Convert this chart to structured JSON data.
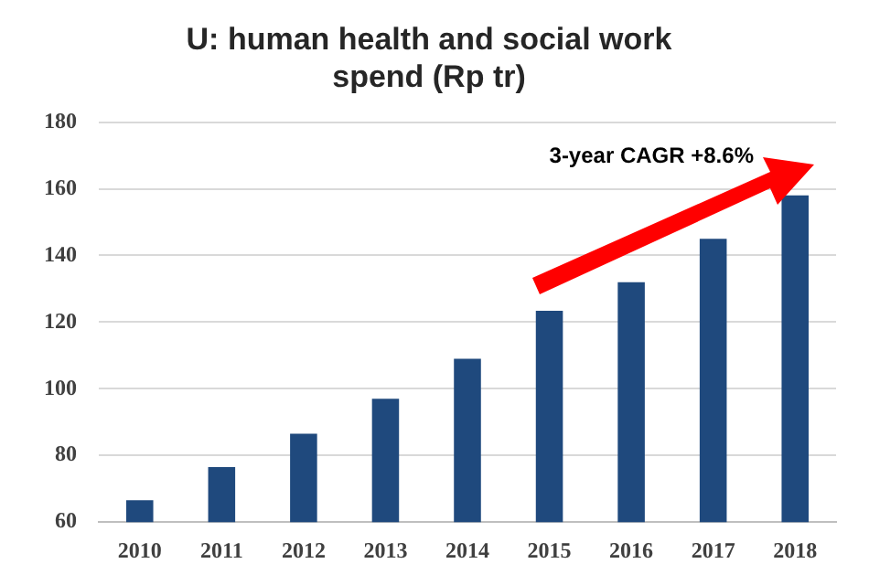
{
  "chart_data": {
    "type": "bar",
    "title": "U: human health and social work spend (Rp tr)",
    "categories": [
      "2010",
      "2011",
      "2012",
      "2013",
      "2014",
      "2015",
      "2016",
      "2017",
      "2018"
    ],
    "values": [
      66.6,
      76.5,
      86.5,
      97,
      109,
      123.4,
      132,
      145,
      158
    ],
    "color": "#1f497d",
    "ylim": [
      60,
      180
    ],
    "yticks": [
      60,
      80,
      100,
      120,
      140,
      160,
      180
    ],
    "grid": "y",
    "annotations": [
      "3-year CAGR +8.6%"
    ]
  }
}
